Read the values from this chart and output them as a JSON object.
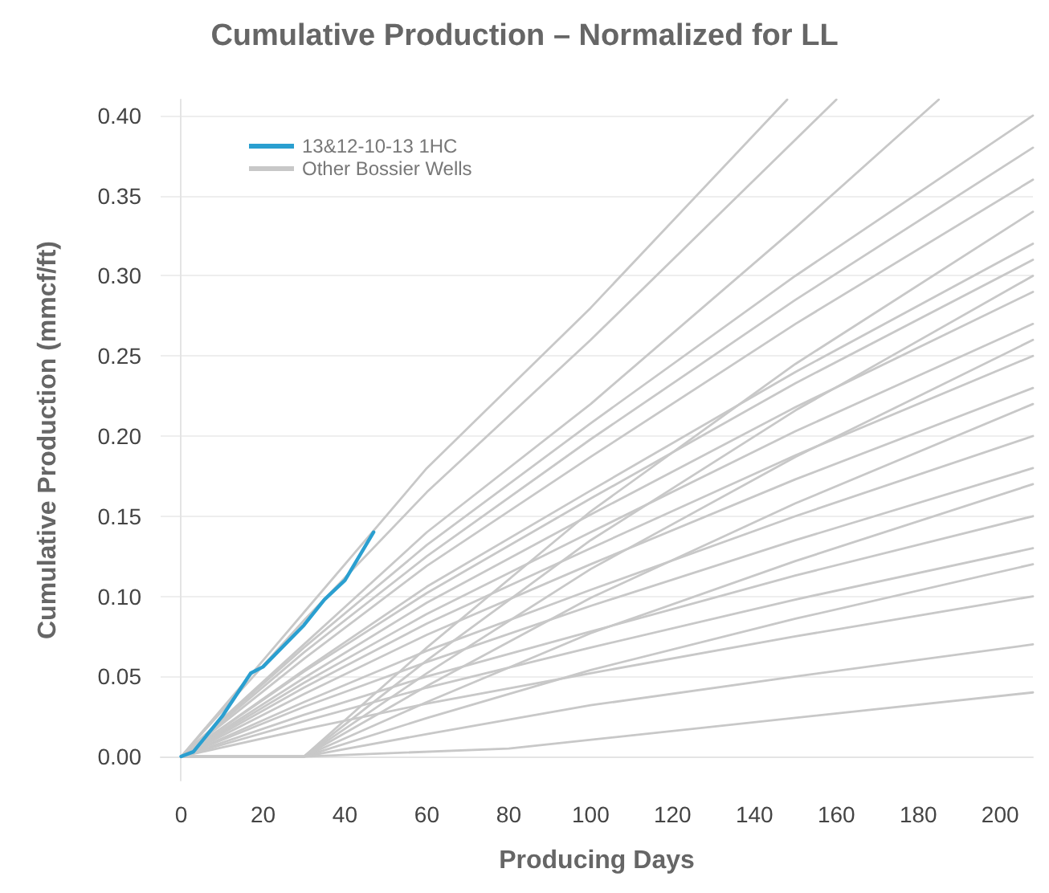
{
  "chart_data": {
    "type": "line",
    "title": "Cumulative Production – Normalized for LL",
    "xlabel": "Producing Days",
    "ylabel": "Cumulative Production (mmcf/ft)",
    "xlim": [
      -5,
      208
    ],
    "xticks": [
      0,
      20,
      40,
      60,
      80,
      100,
      120,
      140,
      160,
      180,
      200
    ],
    "ylim": [
      -0.015,
      0.41
    ],
    "yticks": [
      {
        "value": 0,
        "label": "0.00"
      },
      {
        "value": 0.05,
        "label": "0.05"
      },
      {
        "value": 0.1,
        "label": "0.10"
      },
      {
        "value": 0.15,
        "label": "0.15"
      },
      {
        "value": 0.2,
        "label": "0.20"
      },
      {
        "value": 0.25,
        "label": "0.25"
      },
      {
        "value": 0.3,
        "label": "0.30"
      },
      {
        "value": 0.35,
        "label": "0.35"
      },
      {
        "value": 0.4,
        "label": "0.40"
      }
    ],
    "grid": "y",
    "legend": "top left",
    "marker": "none",
    "line_style": "solid",
    "series": [
      {
        "name": "Other Bossier Wells",
        "color": "#c8c8c8",
        "x": [
          0,
          30,
          60,
          100,
          150,
          208
        ],
        "values": [
          0,
          0.068,
          0.132,
          0.208,
          0.3,
          0.4
        ]
      },
      {
        "color": "#c8c8c8",
        "x": [
          0,
          30,
          60,
          100,
          150,
          208
        ],
        "values": [
          0,
          0.065,
          0.125,
          0.198,
          0.285,
          0.38
        ]
      },
      {
        "color": "#c8c8c8",
        "x": [
          0,
          30,
          60,
          100,
          150,
          208
        ],
        "values": [
          0,
          0.061,
          0.119,
          0.187,
          0.27,
          0.36
        ]
      },
      {
        "color": "#c8c8c8",
        "x": [
          0,
          30,
          60,
          100,
          150,
          208
        ],
        "values": [
          0,
          0,
          0.068,
          0.153,
          0.245,
          0.34
        ]
      },
      {
        "color": "#c8c8c8",
        "x": [
          0,
          30,
          60,
          100,
          150,
          208
        ],
        "values": [
          0,
          0.054,
          0.106,
          0.166,
          0.24,
          0.32
        ]
      },
      {
        "color": "#c8c8c8",
        "x": [
          0,
          30,
          60,
          100,
          150,
          208
        ],
        "values": [
          0,
          0.053,
          0.102,
          0.161,
          0.233,
          0.31
        ]
      },
      {
        "color": "#c8c8c8",
        "x": [
          0,
          30,
          60,
          100,
          150,
          208
        ],
        "values": [
          0,
          0,
          0.06,
          0.135,
          0.216,
          0.3
        ]
      },
      {
        "color": "#c8c8c8",
        "x": [
          0,
          30,
          60,
          100,
          150,
          208
        ],
        "values": [
          0,
          0.049,
          0.096,
          0.151,
          0.218,
          0.29
        ]
      },
      {
        "color": "#c8c8c8",
        "x": [
          0,
          30,
          60,
          100,
          150,
          208
        ],
        "values": [
          0,
          0.046,
          0.089,
          0.14,
          0.203,
          0.27
        ]
      },
      {
        "color": "#c8c8c8",
        "x": [
          0,
          30,
          60,
          100,
          150,
          208
        ],
        "values": [
          0,
          0,
          0.052,
          0.117,
          0.187,
          0.26
        ]
      },
      {
        "color": "#c8c8c8",
        "x": [
          0,
          30,
          60,
          100,
          150,
          208
        ],
        "values": [
          0,
          0.043,
          0.083,
          0.13,
          0.188,
          0.25
        ]
      },
      {
        "color": "#c8c8c8",
        "x": [
          0,
          30,
          60,
          100,
          150,
          208
        ],
        "values": [
          0,
          0.039,
          0.076,
          0.12,
          0.173,
          0.23
        ]
      },
      {
        "color": "#c8c8c8",
        "x": [
          0,
          30,
          60,
          100,
          150,
          208
        ],
        "values": [
          0,
          0,
          0.044,
          0.099,
          0.158,
          0.22
        ]
      },
      {
        "color": "#c8c8c8",
        "x": [
          0,
          30,
          60,
          100,
          150,
          208
        ],
        "values": [
          0,
          0.034,
          0.066,
          0.104,
          0.15,
          0.2
        ]
      },
      {
        "color": "#c8c8c8",
        "x": [
          0,
          30,
          60,
          100,
          150,
          208
        ],
        "values": [
          0,
          0.031,
          0.059,
          0.094,
          0.135,
          0.18
        ]
      },
      {
        "color": "#c8c8c8",
        "x": [
          0,
          30,
          60,
          100,
          150,
          208
        ],
        "values": [
          0,
          0,
          0.034,
          0.077,
          0.122,
          0.17
        ]
      },
      {
        "color": "#c8c8c8",
        "x": [
          0,
          30,
          60,
          100,
          150,
          208
        ],
        "values": [
          0,
          0.026,
          0.05,
          0.078,
          0.113,
          0.15
        ]
      },
      {
        "color": "#c8c8c8",
        "x": [
          0,
          30,
          60,
          100,
          150,
          208
        ],
        "values": [
          0,
          0.022,
          0.043,
          0.068,
          0.098,
          0.13
        ]
      },
      {
        "color": "#c8c8c8",
        "x": [
          0,
          30,
          60,
          100,
          150,
          208
        ],
        "values": [
          0,
          0,
          0.024,
          0.054,
          0.086,
          0.12
        ]
      },
      {
        "color": "#c8c8c8",
        "x": [
          0,
          30,
          60,
          100,
          150,
          208
        ],
        "values": [
          0,
          0.017,
          0.033,
          0.052,
          0.075,
          0.1
        ]
      },
      {
        "color": "#c8c8c8",
        "x": [
          0,
          30,
          60,
          100,
          150,
          208
        ],
        "values": [
          0,
          0,
          0.014,
          0.032,
          0.05,
          0.07
        ]
      },
      {
        "color": "#c8c8c8",
        "x": [
          0,
          30,
          80,
          208
        ],
        "values": [
          0,
          0,
          0.005,
          0.04
        ]
      },
      {
        "color": "#c8c8c8",
        "x": [
          0,
          30,
          60,
          100,
          148
        ],
        "values": [
          0,
          0.09,
          0.18,
          0.28,
          0.41
        ]
      },
      {
        "color": "#c8c8c8",
        "x": [
          0,
          30,
          60,
          100,
          160
        ],
        "values": [
          0,
          0.085,
          0.165,
          0.26,
          0.41
        ]
      },
      {
        "color": "#c8c8c8",
        "x": [
          0,
          30,
          60,
          100,
          150,
          185
        ],
        "values": [
          0,
          0.07,
          0.14,
          0.22,
          0.33,
          0.41
        ]
      },
      {
        "name": "13&12-10-13 1HC",
        "color": "#2a9fd0",
        "x": [
          0,
          3,
          10,
          17,
          20,
          30,
          35,
          40,
          47
        ],
        "values": [
          0,
          0.003,
          0.025,
          0.052,
          0.056,
          0.082,
          0.098,
          0.11,
          0.14
        ]
      }
    ]
  }
}
